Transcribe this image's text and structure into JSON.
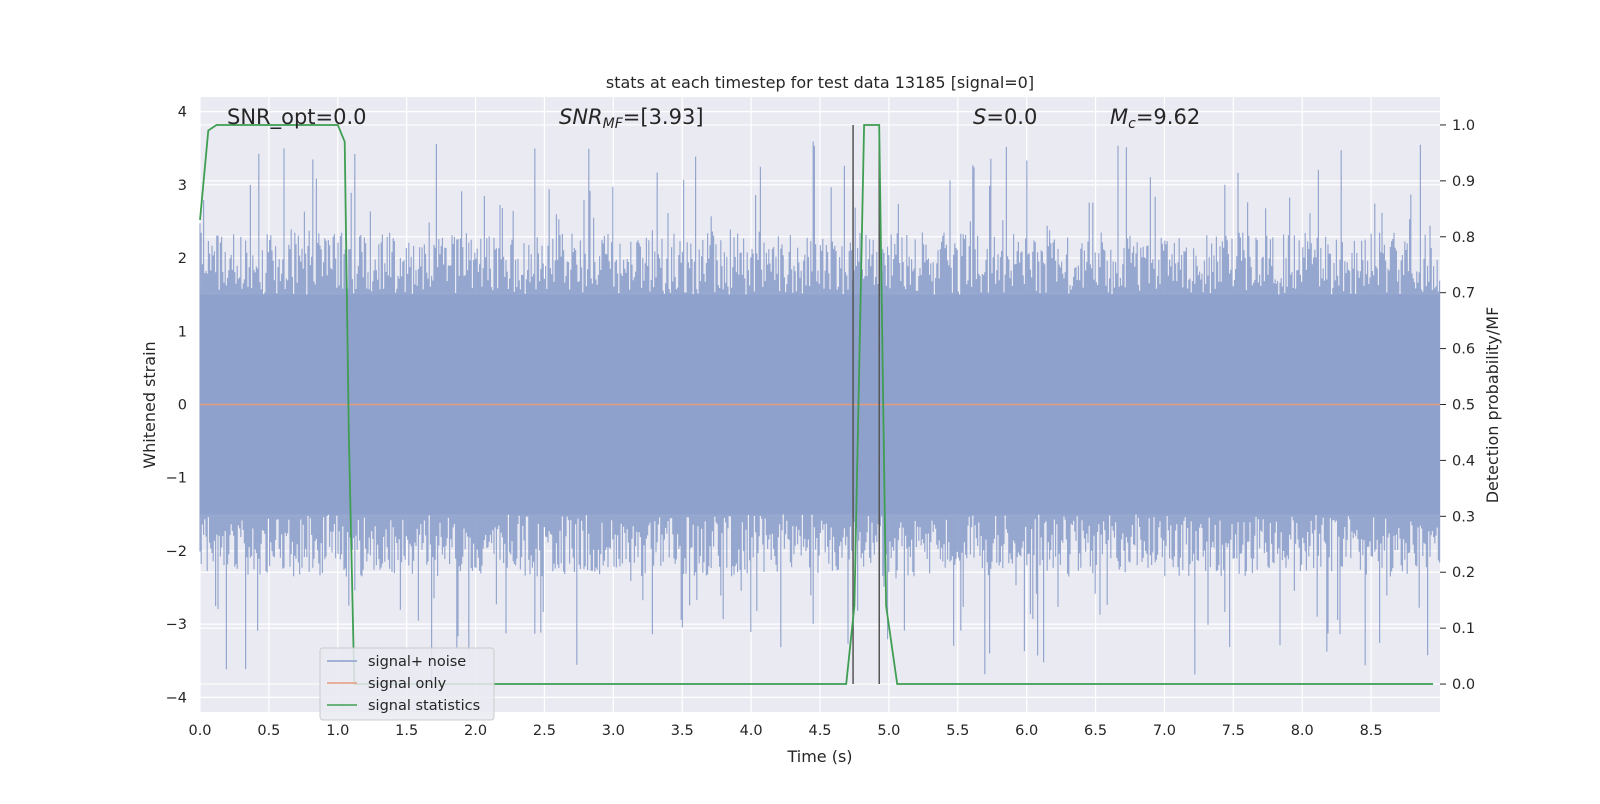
{
  "chart_data": {
    "type": "line",
    "title": "stats at each timestep for test data 13185 [signal=0]",
    "xlabel": "Time (s)",
    "ylabel_left": "Whitened strain",
    "ylabel_right": "Detection probability/MF",
    "xlim": [
      0.0,
      9.0
    ],
    "ylim_left": [
      -4.2,
      4.2
    ],
    "ylim_right": [
      -0.05,
      1.05
    ],
    "x_ticks": [
      "0.0",
      "0.5",
      "1.0",
      "1.5",
      "2.0",
      "2.5",
      "3.0",
      "3.5",
      "4.0",
      "4.5",
      "5.0",
      "5.5",
      "6.0",
      "6.5",
      "7.0",
      "7.5",
      "8.0",
      "8.5"
    ],
    "y_ticks_left": [
      "4",
      "3",
      "2",
      "1",
      "0",
      "−1",
      "−2",
      "−3",
      "−4"
    ],
    "y_ticks_right": [
      "1.0",
      "0.9",
      "0.8",
      "0.7",
      "0.6",
      "0.5",
      "0.4",
      "0.3",
      "0.2",
      "0.1",
      "0.0"
    ],
    "grid": true,
    "legend_placement": "lower left",
    "annotations": {
      "snr_opt": "SNR_opt=0.0",
      "snr_mf_main": "SNR",
      "snr_mf_sub": "MF",
      "snr_mf_value": "=[3.93]",
      "s_main": "S",
      "s_value": "=0.0",
      "mc_main": "M",
      "mc_sub": "c",
      "mc_value": "=9.62"
    },
    "series": [
      {
        "name": "signal+ noise",
        "axis": "left",
        "color": "#8da0cb",
        "note_style": "dense noise envelope approximately between -1.7 and 1.9 with spikes reaching about -4.0 and 3.9",
        "values": []
      },
      {
        "name": "signal only",
        "axis": "left",
        "color": "#e59b7b",
        "x": [
          0.0,
          9.0
        ],
        "y": [
          0.0,
          0.0
        ]
      },
      {
        "name": "signal statistics",
        "axis": "right",
        "color": "#3f9e52",
        "x": [
          0.0,
          0.06,
          0.12,
          0.2,
          0.5,
          1.0,
          1.05,
          1.08,
          1.12,
          1.5,
          2.5,
          3.5,
          4.5,
          4.69,
          4.75,
          4.82,
          4.93,
          4.98,
          5.06,
          5.5,
          6.5,
          7.5,
          8.5,
          8.95
        ],
        "y": [
          0.83,
          0.99,
          1.0,
          1.0,
          1.0,
          1.0,
          0.97,
          0.45,
          0.0,
          0.0,
          0.0,
          0.0,
          0.0,
          0.0,
          0.14,
          1.0,
          1.0,
          0.14,
          0.0,
          0.0,
          0.0,
          0.0,
          0.0,
          0.0
        ]
      }
    ],
    "vertical_markers": [
      {
        "x": 4.74,
        "from_right": 0.0,
        "to_right": 1.0,
        "color": "#555555"
      },
      {
        "x": 4.93,
        "from_right": 0.0,
        "to_right": 0.98,
        "color": "#555555"
      }
    ]
  },
  "legend": {
    "items": [
      {
        "label": "signal+ noise",
        "color": "#8da0cb"
      },
      {
        "label": "signal only",
        "color": "#e59b7b"
      },
      {
        "label": "signal statistics",
        "color": "#3f9e52"
      }
    ]
  },
  "colors": {
    "axes_bg": "#eaeaf2",
    "grid": "#ffffff"
  }
}
